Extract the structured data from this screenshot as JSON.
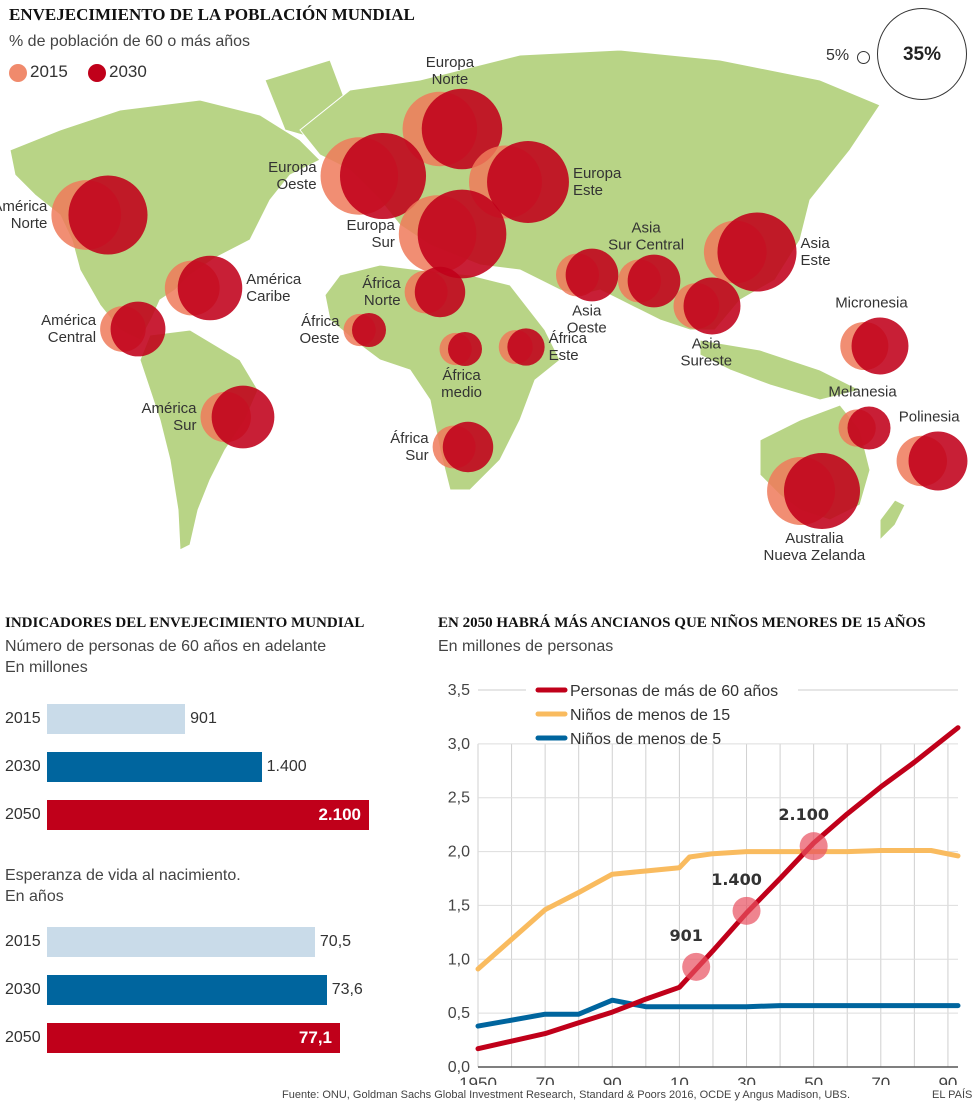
{
  "map": {
    "title": "ENVEJECIMIENTO DE LA POBLACIÓN MUNDIAL",
    "subtitle": "% de población de 60 o más años",
    "legend": [
      {
        "label": "2015",
        "color": "#f08a6c"
      },
      {
        "label": "2030",
        "color": "#c0001a"
      }
    ],
    "size_legend": {
      "small": "5%",
      "large": "35%"
    }
  },
  "bars": {
    "title": "INDICADORES DEL ENVEJECIMIENTO MUNDIAL",
    "sub1": "Número de personas de 60 años en adelante",
    "sub2": "En millones",
    "sub3": "Esperanza de vida al nacimiento.",
    "sub4": "En años"
  },
  "line": {
    "title": "EN 2050 HABRÁ MÁS ANCIANOS QUE NIÑOS MENORES DE 15 AÑOS",
    "subtitle": "En millones de personas"
  },
  "footer": {
    "source": "Fuente: ONU, Goldman Sachs Global Investment Research, Standard & Poors 2016, OCDE y Angus Madison, UBS.",
    "brand": "EL PAÍS"
  },
  "chart_data": [
    {
      "type": "scatter",
      "title": "ENVEJECIMIENTO DE LA POBLACIÓN MUNDIAL",
      "subtitle": "% de población de 60 o más años (proportional circles on world map)",
      "legend": [
        "2015",
        "2030"
      ],
      "size_scale": [
        "5%",
        "35%"
      ],
      "regions": [
        {
          "name": "América Norte",
          "label": [
            "América",
            "Norte"
          ],
          "v2015": 21,
          "v2030": 27
        },
        {
          "name": "América Caribe",
          "label": [
            "América",
            "Caribe"
          ],
          "v2015": 13,
          "v2030": 18
        },
        {
          "name": "América Central",
          "label": [
            "América",
            "Central"
          ],
          "v2015": 9,
          "v2030": 13
        },
        {
          "name": "América Sur",
          "label": [
            "América",
            "Sur"
          ],
          "v2015": 11,
          "v2030": 17
        },
        {
          "name": "Europa Norte",
          "label": [
            "Europa",
            "Norte"
          ],
          "v2015": 24,
          "v2030": 28
        },
        {
          "name": "Europa Oeste",
          "label": [
            "Europa",
            "Oeste"
          ],
          "v2015": 26,
          "v2030": 32
        },
        {
          "name": "Europa Este",
          "label": [
            "Europa",
            "Este"
          ],
          "v2015": 23,
          "v2030": 29
        },
        {
          "name": "Europa Sur",
          "label": [
            "Europa",
            "Sur"
          ],
          "v2015": 26,
          "v2030": 34
        },
        {
          "name": "África Norte",
          "label": [
            "África",
            "Norte"
          ],
          "v2015": 8,
          "v2030": 11
        },
        {
          "name": "África Oeste",
          "label": [
            "África",
            "Oeste"
          ],
          "v2015": 4.5,
          "v2030": 5
        },
        {
          "name": "África medio",
          "label": [
            "África",
            "medio"
          ],
          "v2015": 4.5,
          "v2030": 5
        },
        {
          "name": "África Este",
          "label": [
            "África",
            "Este"
          ],
          "v2015": 5,
          "v2030": 6
        },
        {
          "name": "África Sur",
          "label": [
            "África",
            "Sur"
          ],
          "v2015": 8,
          "v2030": 11
        },
        {
          "name": "Asia Oeste",
          "label": [
            "Asia",
            "Oeste"
          ],
          "v2015": 8,
          "v2030": 12
        },
        {
          "name": "Asia Sur Central",
          "label": [
            "Asia",
            "Sur Central"
          ],
          "v2015": 8,
          "v2030": 12
        },
        {
          "name": "Asia Este",
          "label": [
            "Asia",
            "Este"
          ],
          "v2015": 17,
          "v2030": 27
        },
        {
          "name": "Asia Sureste",
          "label": [
            "Asia",
            "Sureste"
          ],
          "v2015": 9,
          "v2030": 14
        },
        {
          "name": "Micronesia",
          "label": [
            "Micronesia"
          ],
          "v2015": 10,
          "v2030": 14
        },
        {
          "name": "Melanesia",
          "label": [
            "Melanesia"
          ],
          "v2015": 6,
          "v2030": 8
        },
        {
          "name": "Polinesia",
          "label": [
            "Polinesia"
          ],
          "v2015": 11,
          "v2030": 15
        },
        {
          "name": "Australia Nueva Zelanda",
          "label": [
            "Australia",
            "Nueva Zelanda"
          ],
          "v2015": 20,
          "v2030": 25
        }
      ]
    },
    {
      "type": "bar",
      "title": "INDICADORES DEL ENVEJECIMIENTO MUNDIAL",
      "subtitle": "Número de personas de 60 años en adelante. En millones",
      "categories": [
        "2015",
        "2030",
        "2050"
      ],
      "values": [
        901,
        1400,
        2100
      ],
      "labels": [
        "901",
        "1.400",
        "2.100"
      ],
      "colors": [
        "#c9dbe9",
        "#00659e",
        "#c0001a"
      ]
    },
    {
      "type": "bar",
      "title": "Esperanza de vida al nacimiento",
      "subtitle": "En años",
      "categories": [
        "2015",
        "2030",
        "2050"
      ],
      "values": [
        70.5,
        73.6,
        77.1
      ],
      "labels": [
        "70,5",
        "73,6",
        "77,1"
      ],
      "colors": [
        "#c9dbe9",
        "#00659e",
        "#c0001a"
      ]
    },
    {
      "type": "line",
      "title": "EN 2050 HABRÁ MÁS ANCIANOS QUE NIÑOS MENORES DE 15 AÑOS",
      "subtitle": "En millones de personas",
      "ylabel": "",
      "xlabel": "",
      "ylim": [
        0,
        3.5
      ],
      "xlim": [
        1950,
        2093
      ],
      "yticks": [
        "0,0",
        "0,5",
        "1,0",
        "1,5",
        "2,0",
        "2,5",
        "3,0",
        "3,5"
      ],
      "xticks": [
        {
          "x": 1950,
          "label": "1950"
        },
        {
          "x": 1970,
          "label": "70"
        },
        {
          "x": 1990,
          "label": "90"
        },
        {
          "x": 2010,
          "label": "10"
        },
        {
          "x": 2030,
          "label": "30"
        },
        {
          "x": 2050,
          "label": "50"
        },
        {
          "x": 2070,
          "label": "70"
        },
        {
          "x": 2090,
          "label": "90"
        }
      ],
      "grid": true,
      "legend_position": "top-left",
      "series": [
        {
          "name": "Personas de más de 60 años",
          "color": "#c0001a",
          "x": [
            1950,
            1970,
            1980,
            1990,
            2000,
            2010,
            2020,
            2030,
            2040,
            2050,
            2060,
            2070,
            2080,
            2093
          ],
          "y": [
            0.17,
            0.31,
            0.41,
            0.51,
            0.63,
            0.74,
            1.08,
            1.43,
            1.75,
            2.08,
            2.35,
            2.6,
            2.83,
            3.15
          ]
        },
        {
          "name": "Niños de menos de 15",
          "color": "#f9bb5f",
          "x": [
            1950,
            1970,
            1980,
            1990,
            2000,
            2010,
            2013,
            2020,
            2030,
            2040,
            2050,
            2060,
            2070,
            2085,
            2093
          ],
          "y": [
            0.91,
            1.46,
            1.62,
            1.79,
            1.82,
            1.85,
            1.95,
            1.98,
            2.0,
            2.0,
            2.0,
            2.0,
            2.01,
            2.01,
            1.96
          ]
        },
        {
          "name": "Niños de menos de 5",
          "color": "#00659e",
          "x": [
            1950,
            1970,
            1980,
            1990,
            2000,
            2010,
            2020,
            2030,
            2040,
            2050,
            2060,
            2070,
            2080,
            2093
          ],
          "y": [
            0.38,
            0.49,
            0.49,
            0.62,
            0.56,
            0.56,
            0.56,
            0.56,
            0.57,
            0.57,
            0.57,
            0.57,
            0.57,
            0.57
          ]
        }
      ],
      "annotations": [
        {
          "x": 2015,
          "y": 0.93,
          "label": "901"
        },
        {
          "x": 2030,
          "y": 1.45,
          "label": "1.400"
        },
        {
          "x": 2050,
          "y": 2.05,
          "label": "2.100"
        }
      ]
    }
  ]
}
